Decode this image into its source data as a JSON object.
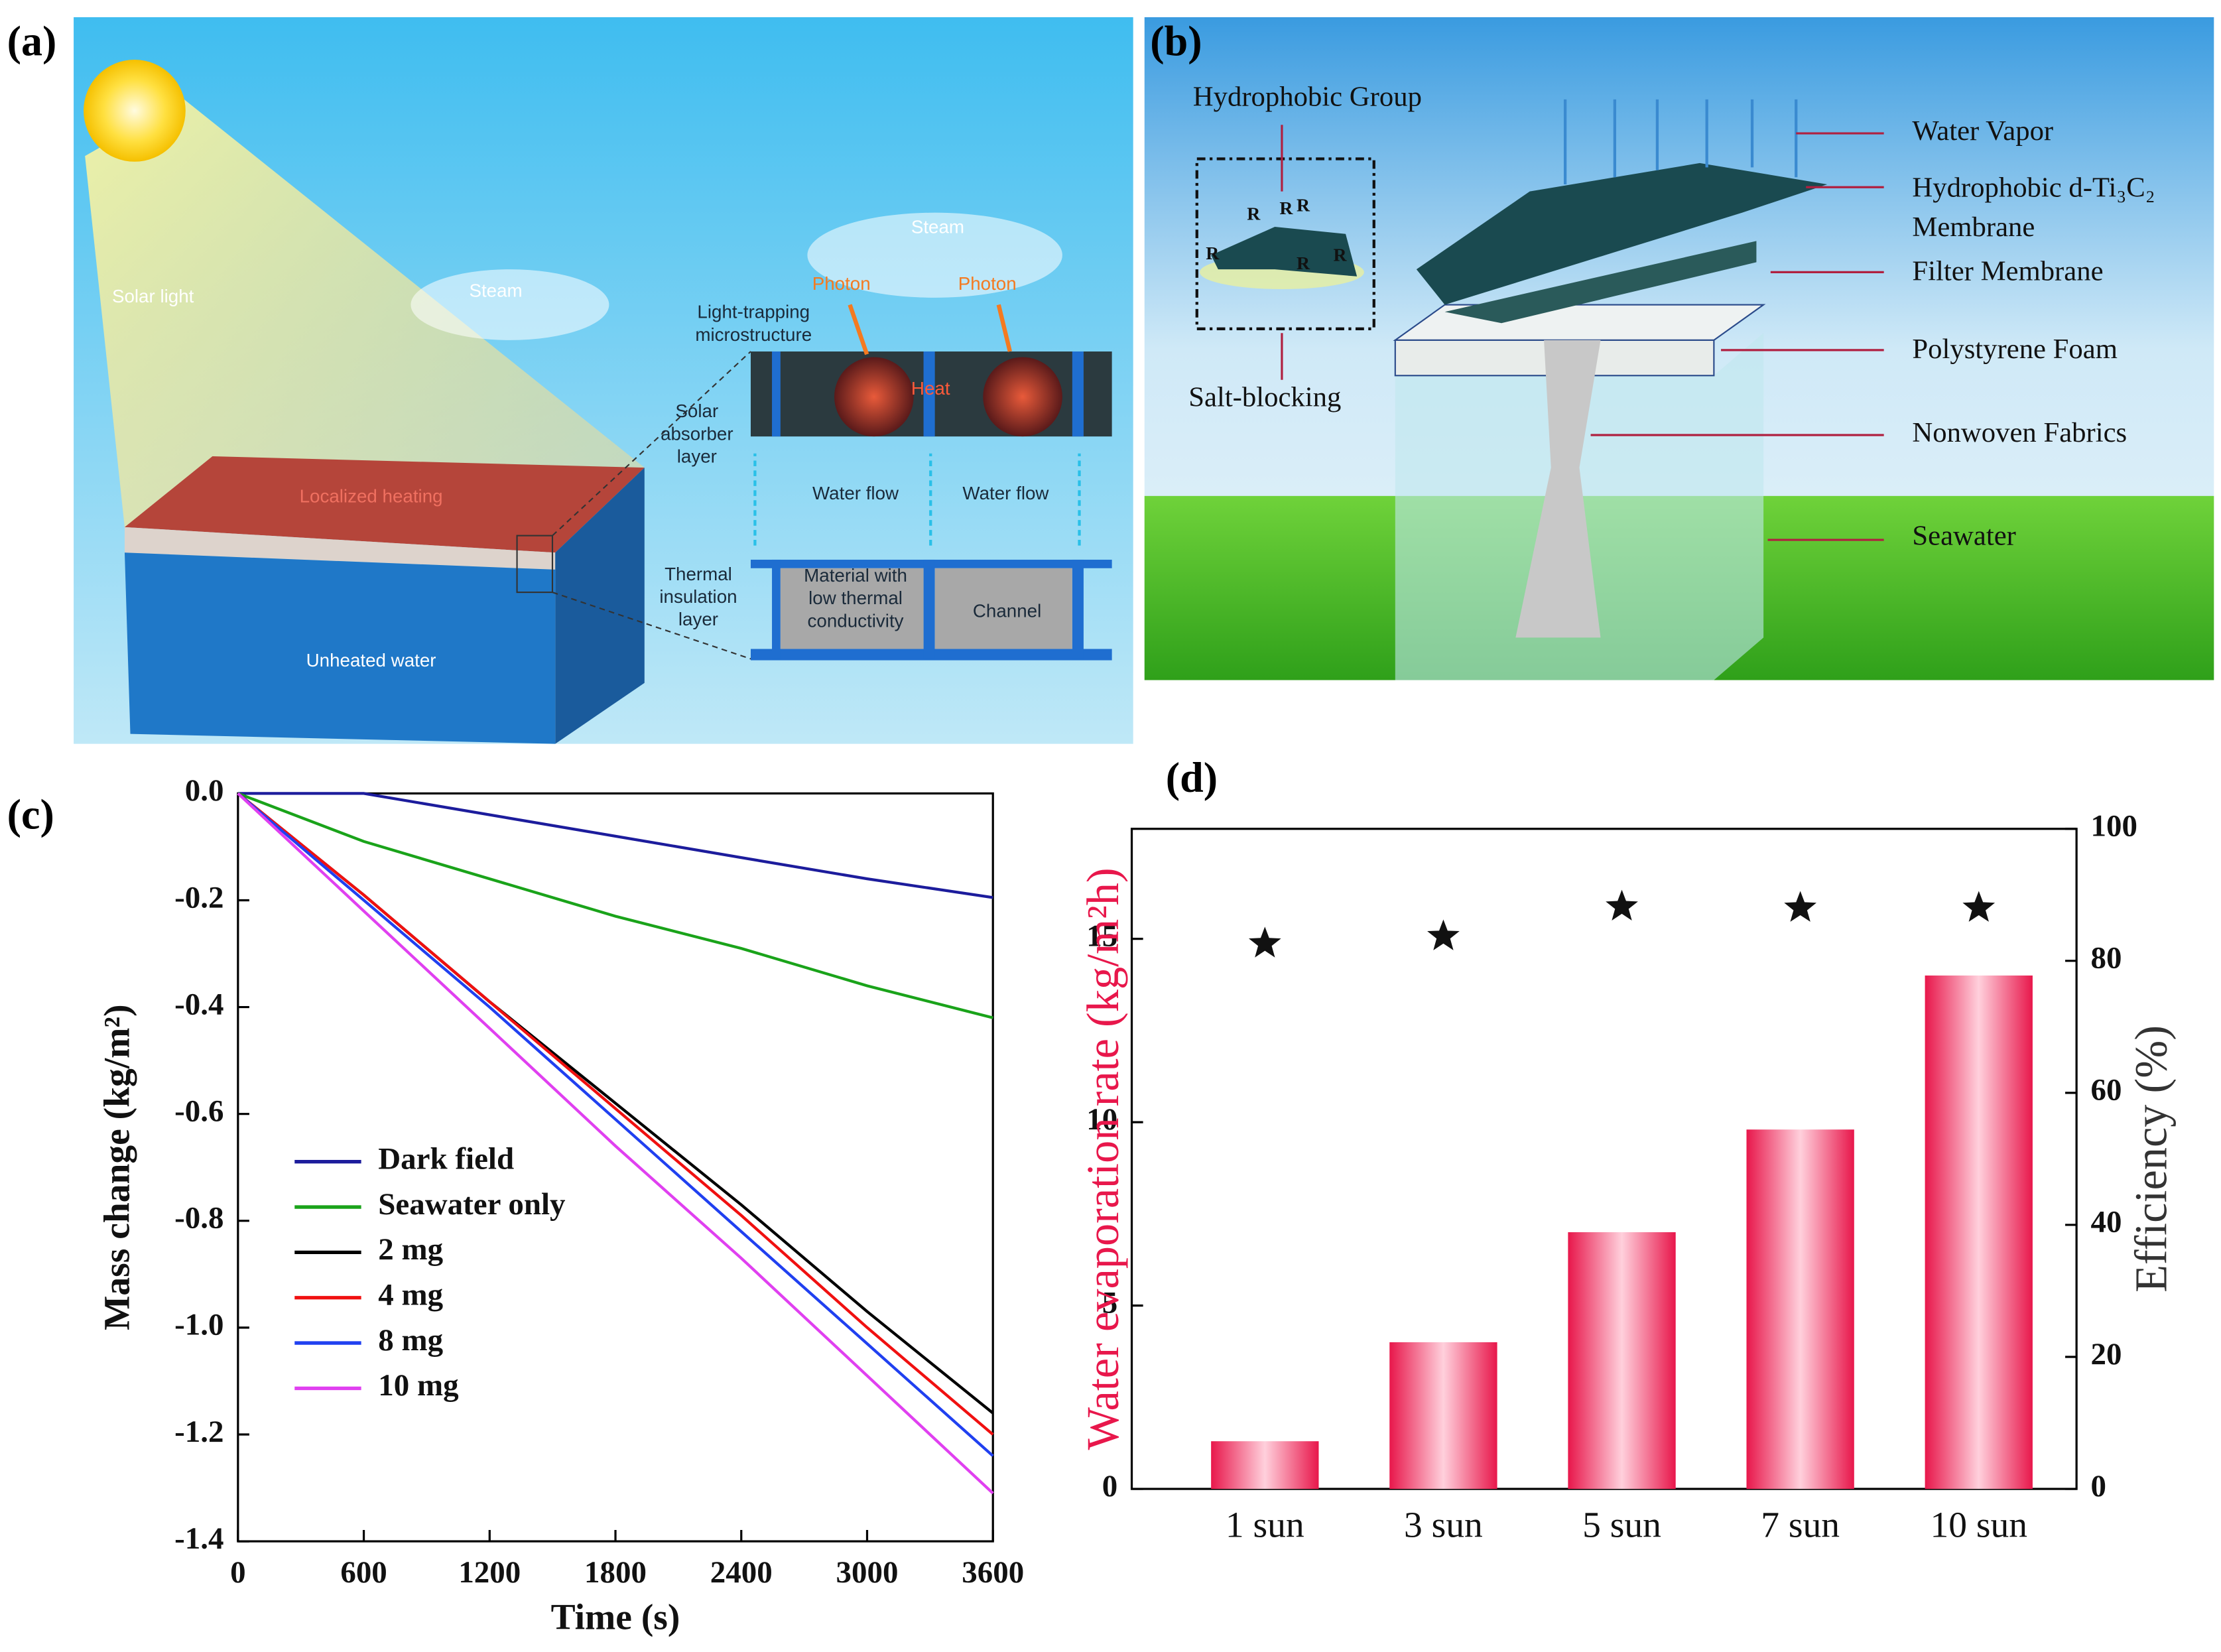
{
  "panel_labels": [
    "(a)",
    "(b)",
    "(c)",
    "(d)"
  ],
  "diagram_a": {
    "solar_light": "Solar light",
    "steam": [
      "Steam",
      "Steam"
    ],
    "photon": [
      "Photon",
      "Photon"
    ],
    "light_trapping": [
      "Light-trapping",
      "microstructure"
    ],
    "heat": "Heat",
    "solar_absorber": [
      "Solar",
      "absorber",
      "layer"
    ],
    "localized_heating": "Localized heating",
    "water_flow": [
      "Water flow",
      "Water flow"
    ],
    "thermal_insulation": [
      "Thermal",
      "insulation",
      "layer"
    ],
    "material": [
      "Material with",
      "low thermal",
      "conductivity"
    ],
    "channel": "Channel",
    "unheated_water": "Unheated water"
  },
  "diagram_b": {
    "hydrophobic_group": "Hydrophobic Group",
    "salt_blocking": "Salt-blocking",
    "r_labels": [
      "R",
      "R",
      "R",
      "R",
      "R",
      "R"
    ],
    "water_vapor": "Water Vapor",
    "membrane": [
      "Hydrophobic d-Ti₃C₂",
      "Membrane"
    ],
    "filter_membrane": "Filter Membrane",
    "polystyrene_foam": "Polystyrene Foam",
    "nonwoven_fabrics": "Nonwoven Fabrics",
    "seawater": "Seawater"
  },
  "chart_data": [
    {
      "type": "line",
      "xlabel": "Time (s)",
      "ylabel": "Mass change (kg/m²)",
      "x": [
        0,
        600,
        1200,
        1800,
        2400,
        3000,
        3600
      ],
      "xlim": [
        0,
        3600
      ],
      "xticks": [
        0,
        600,
        1200,
        1800,
        2400,
        3000,
        3600
      ],
      "ylim": [
        -1.4,
        0
      ],
      "yticks": [
        {
          "value": 0,
          "label": "0.0"
        },
        -0.2,
        -0.4,
        -0.6,
        -0.8,
        {
          "value": -1,
          "label": "-1.0"
        },
        -1.2,
        -1.4
      ],
      "legend": "lower left",
      "series": [
        {
          "name": "Dark field",
          "color": "#1c1c9c",
          "values": [
            0,
            0,
            -0.04,
            -0.08,
            -0.12,
            -0.16,
            -0.195
          ]
        },
        {
          "name": "Seawater only",
          "color": "#1aa31a",
          "values": [
            0,
            -0.09,
            -0.16,
            -0.23,
            -0.29,
            -0.36,
            -0.42
          ]
        },
        {
          "name": "2 mg",
          "color": "#000000",
          "values": [
            0,
            -0.19,
            -0.39,
            -0.58,
            -0.77,
            -0.97,
            -1.16
          ]
        },
        {
          "name": "4 mg",
          "color": "#f01010",
          "values": [
            0,
            -0.19,
            -0.39,
            -0.59,
            -0.79,
            -1.0,
            -1.2
          ]
        },
        {
          "name": "8 mg",
          "color": "#2040f0",
          "values": [
            0,
            -0.2,
            -0.4,
            -0.61,
            -0.82,
            -1.03,
            -1.24
          ]
        },
        {
          "name": "10 mg",
          "color": "#e040f0",
          "values": [
            0,
            -0.22,
            -0.44,
            -0.66,
            -0.87,
            -1.09,
            -1.31
          ]
        }
      ]
    },
    {
      "type": "bar",
      "ylabel": "Water evaporation rate (kg/m²h)",
      "y2label": "Efficiency (%)",
      "categories": [
        "1 sun",
        "3 sun",
        "5 sun",
        "7 sun",
        "10 sun"
      ],
      "ylim": [
        0,
        18
      ],
      "yticks": [
        0,
        5,
        10,
        15
      ],
      "y2lim": [
        0,
        100
      ],
      "y2ticks": [
        0,
        20,
        40,
        60,
        80,
        100
      ],
      "series": [
        {
          "color": "#e8174b",
          "values": [
            1.3,
            4.0,
            7.0,
            9.8,
            14.0
          ]
        },
        {
          "type": "scatter",
          "marker": "star",
          "axis": "y2",
          "color": "#111111",
          "values": [
            82.6,
            83.7,
            88.2,
            88.0,
            88.0
          ]
        }
      ]
    }
  ]
}
